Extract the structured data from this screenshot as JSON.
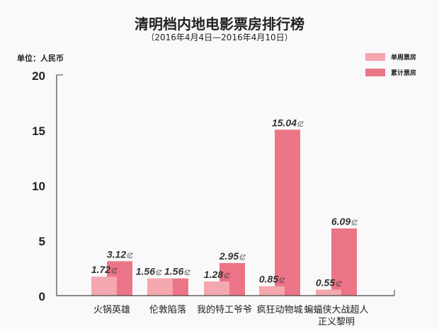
{
  "chart_data": {
    "type": "bar",
    "title": "清明档内地电影票房排行榜",
    "subtitle": "（2016年4月4日—2016年4月10日）",
    "unit_label": "单位：人民币",
    "value_suffix": "亿",
    "categories": [
      [
        "火锅英雄"
      ],
      [
        "伦敦陷落"
      ],
      [
        "我的特工爷爷"
      ],
      [
        "疯狂动物城"
      ],
      [
        "蝙蝠侠大战超人",
        "正义黎明"
      ]
    ],
    "series": [
      {
        "name": "单周票房",
        "color": "#f4a7ae",
        "values": [
          1.72,
          1.56,
          1.28,
          0.85,
          0.55
        ]
      },
      {
        "name": "累计票房",
        "color": "#ec7487",
        "values": [
          3.12,
          1.56,
          2.95,
          15.04,
          6.09
        ]
      }
    ],
    "ylim": [
      0,
      20
    ],
    "yticks": [
      "0",
      "5",
      "10",
      "15",
      "20"
    ],
    "legend": "top-right",
    "grid": false
  }
}
